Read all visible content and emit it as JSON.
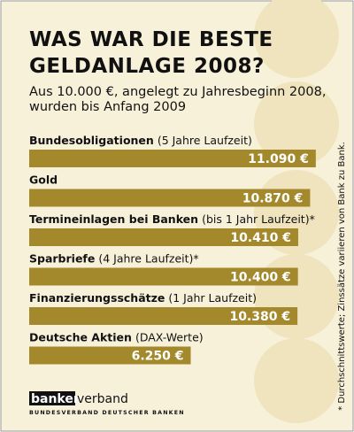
{
  "chart_data": {
    "type": "bar",
    "orientation": "horizontal",
    "title": [
      "WAS WAR DIE BESTE",
      "GELDANLAGE 2008?"
    ],
    "subtitle": [
      "Aus 10.000 €, angelegt zu Jahresbeginn 2008,",
      "wurden bis Anfang 2009"
    ],
    "categories": [
      {
        "name": "Bundesobligationen",
        "note": "(5 Jahre Laufzeit)"
      },
      {
        "name": "Gold"
      },
      {
        "name": "Termineinlagen bei Banken",
        "note": "(bis 1 Jahr Laufzeit)*"
      },
      {
        "name": "Sparbriefe",
        "note": "(4 Jahre Laufzeit)*"
      },
      {
        "name": "Finanzierungsschätze",
        "note": "(1 Jahr Laufzeit)"
      },
      {
        "name": "Deutsche Aktien",
        "note": "(DAX-Werte)"
      }
    ],
    "values": [
      11090,
      10870,
      10410,
      10400,
      10380,
      6250
    ],
    "value_labels": [
      "11.090 €",
      "10.870 €",
      "10.410 €",
      "10.400 €",
      "10.380 €",
      "6.250 €"
    ],
    "color": "#a3892c",
    "footnote": "* Durchschnittswerte; Zinssätze variieren von Bank zu Bank.",
    "logo": {
      "bold": "banken",
      "rest": "verband",
      "tagline": "BUNDESVERBAND DEUTSCHER BANKEN"
    }
  }
}
